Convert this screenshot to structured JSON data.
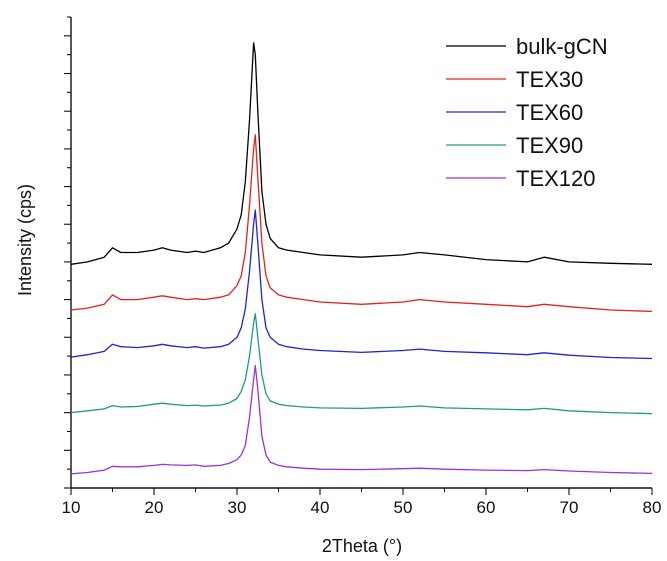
{
  "chart_data": {
    "type": "line",
    "xlabel": "2Theta (°)",
    "ylabel": "Intensity (cps)",
    "xlim": [
      10,
      80
    ],
    "x_ticks": [
      10,
      20,
      30,
      40,
      50,
      60,
      70,
      80
    ],
    "x_tick_labels": [
      "10",
      "20",
      "30",
      "40",
      "50",
      "60",
      "70",
      "80"
    ],
    "y_tick_labels": false,
    "ylim": [
      0,
      100
    ],
    "legend_position": "top-right",
    "grid": false,
    "x": [
      10,
      12,
      14,
      15,
      16,
      18,
      20,
      21,
      22,
      24,
      25,
      26,
      28,
      29,
      30,
      30.5,
      31,
      31.5,
      32,
      32.2,
      32.5,
      33,
      33.5,
      34,
      35,
      36,
      38,
      40,
      45,
      50,
      52,
      55,
      60,
      65,
      67,
      70,
      75,
      80
    ],
    "series": [
      {
        "name": "bulk-gCN",
        "color": "#000000",
        "values": [
          47.5,
          48.0,
          49.0,
          51.0,
          50.0,
          50.0,
          50.5,
          51.0,
          50.5,
          50.0,
          50.3,
          50.0,
          51.0,
          52.0,
          55.0,
          58.0,
          65.0,
          78.0,
          94.5,
          92.0,
          80.0,
          63.0,
          56.0,
          53.0,
          51.0,
          50.5,
          50.0,
          49.5,
          49.0,
          49.5,
          50.0,
          49.5,
          48.5,
          48.0,
          49.0,
          48.0,
          47.7,
          47.5
        ]
      },
      {
        "name": "TEX30",
        "color": "#e8201a",
        "values": [
          37.8,
          38.2,
          39.0,
          41.0,
          40.0,
          40.0,
          40.5,
          40.8,
          40.5,
          40.0,
          40.2,
          40.0,
          40.5,
          41.0,
          43.0,
          45.0,
          50.0,
          60.0,
          72.0,
          75.0,
          66.0,
          52.0,
          45.0,
          42.5,
          41.0,
          40.5,
          40.0,
          39.5,
          39.0,
          39.5,
          40.0,
          39.5,
          39.0,
          38.5,
          39.0,
          38.5,
          37.8,
          37.5
        ]
      },
      {
        "name": "TEX60",
        "color": "#1e24d8",
        "values": [
          27.8,
          28.3,
          29.0,
          30.5,
          30.0,
          29.8,
          30.2,
          30.5,
          30.2,
          29.8,
          30.0,
          29.7,
          30.0,
          30.5,
          32.0,
          34.0,
          38.0,
          46.0,
          56.0,
          59.0,
          52.0,
          40.0,
          34.0,
          32.0,
          30.5,
          30.0,
          29.5,
          29.2,
          28.8,
          29.2,
          29.5,
          29.0,
          28.7,
          28.3,
          28.7,
          28.2,
          27.7,
          27.5
        ]
      },
      {
        "name": "TEX90",
        "color": "#1f9a8a",
        "values": [
          16.0,
          16.4,
          16.8,
          17.5,
          17.2,
          17.3,
          17.8,
          18.0,
          17.8,
          17.5,
          17.6,
          17.4,
          17.6,
          18.0,
          19.0,
          20.5,
          23.0,
          28.0,
          35.0,
          37.0,
          32.0,
          24.0,
          20.0,
          18.5,
          17.8,
          17.5,
          17.2,
          17.0,
          16.9,
          17.2,
          17.4,
          17.0,
          16.8,
          16.6,
          16.9,
          16.4,
          16.0,
          15.8
        ]
      },
      {
        "name": "TEX120",
        "color": "#9a32e0",
        "values": [
          3.0,
          3.3,
          3.8,
          4.6,
          4.5,
          4.5,
          4.8,
          5.0,
          4.9,
          4.8,
          4.9,
          4.6,
          4.8,
          5.2,
          6.0,
          7.0,
          9.0,
          15.0,
          23.0,
          26.0,
          21.0,
          11.0,
          7.0,
          5.5,
          4.8,
          4.5,
          4.2,
          4.0,
          3.9,
          4.1,
          4.2,
          4.0,
          3.8,
          3.7,
          3.9,
          3.6,
          3.3,
          3.1
        ]
      }
    ]
  }
}
